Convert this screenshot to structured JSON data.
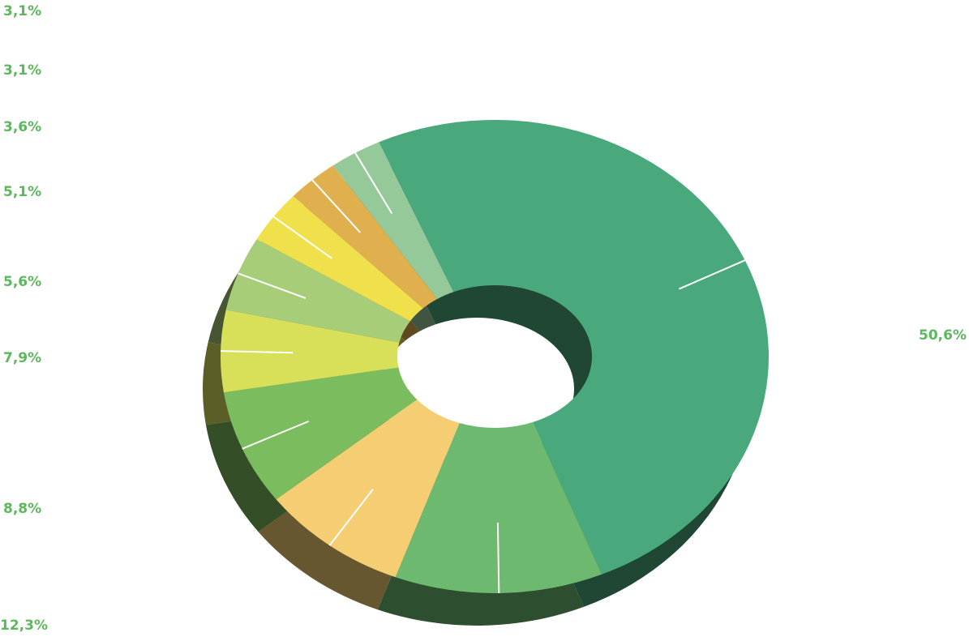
{
  "chart_data": {
    "type": "donut3d",
    "categories": [
      null,
      null,
      null,
      null,
      null,
      null,
      null,
      null,
      null
    ],
    "values": [
      50.6,
      12.3,
      8.8,
      7.9,
      5.6,
      5.1,
      3.6,
      3.1,
      3.1
    ],
    "value_labels": [
      "50,6%",
      "12,3%",
      "8,8%",
      "7,9%",
      "5,6%",
      "5,1%",
      "3,6%",
      "3,1%",
      "3,1%"
    ],
    "colors": [
      "#4aa97c",
      "#6cb96f",
      "#f5ce74",
      "#7bbd5e",
      "#d8e05a",
      "#a8cd78",
      "#f0e04c",
      "#e0b04e",
      "#96c99a"
    ],
    "label_color": "#5cb85c"
  }
}
